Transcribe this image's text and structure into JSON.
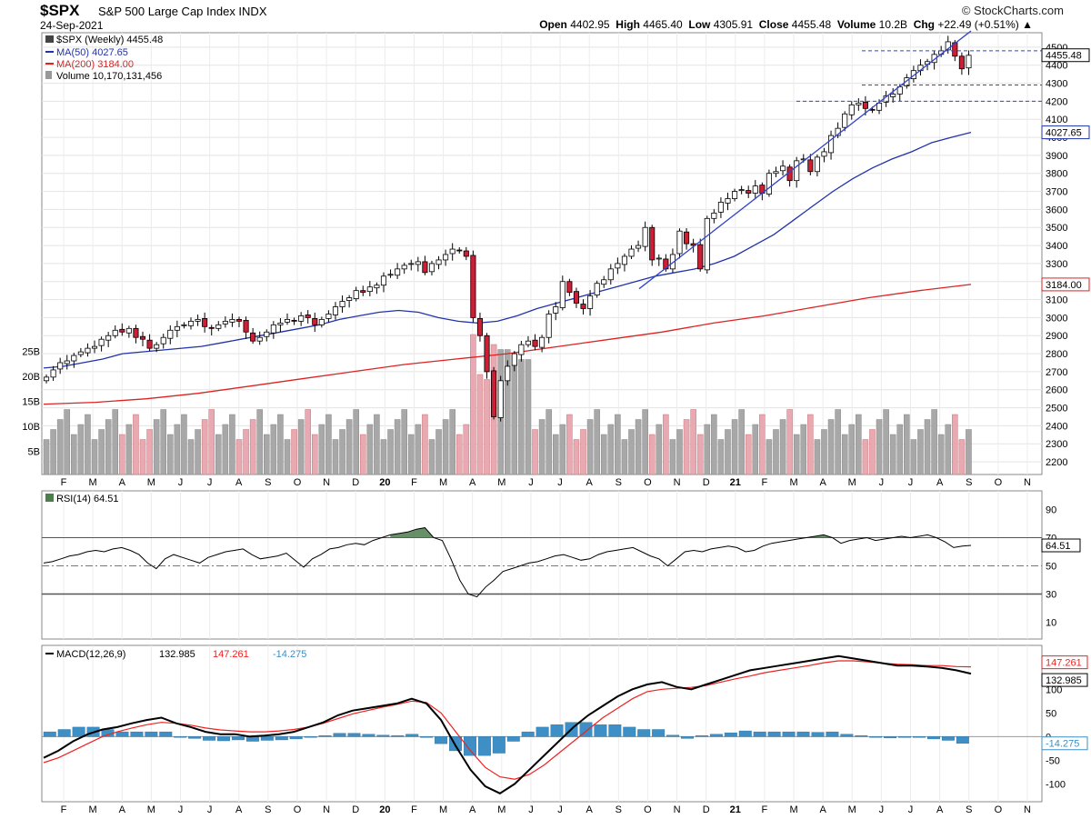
{
  "header": {
    "symbol": "$SPX",
    "name": "S&P 500 Large Cap Index INDX",
    "date": "24-Sep-2021",
    "brand": "© StockCharts.com",
    "open_label": "Open",
    "open": "4402.95",
    "high_label": "High",
    "high": "4465.40",
    "low_label": "Low",
    "low": "4305.91",
    "close_label": "Close",
    "close": "4455.48",
    "volume_label": "Volume",
    "volume": "10.2B",
    "chg_label": "Chg",
    "chg": "+22.49 (+0.51%)"
  },
  "colors": {
    "up": "#ffffff",
    "down": "#cc1e35",
    "ma50": "#2233aa",
    "ma200": "#dd2222",
    "vol_up": "#a8a8a8",
    "vol_down": "#e8a9b2",
    "rsi": "#000000",
    "rsi_fill": "#4e7d4e",
    "macd": "#000000",
    "signal": "#ee2222",
    "hist": "#3d8fc5",
    "trend": "#3344cc"
  },
  "legend": {
    "price": "$SPX (Weekly) 4455.48",
    "ma50": "MA(50) 4027.65",
    "ma200": "MA(200) 3184.00",
    "volume": "Volume 10,170,131,456",
    "rsi": "RSI(14) 64.51",
    "macd_label": "MACD(12,26,9)",
    "macd_val": "132.985",
    "signal_val": "147.261",
    "hist_val": "-14.275"
  },
  "chart_data": [
    {
      "type": "candlestick",
      "title": "$SPX (Weekly) 4455.48",
      "y_ticks": [
        2200,
        2300,
        2400,
        2500,
        2600,
        2700,
        2800,
        2900,
        3000,
        3100,
        3200,
        3300,
        3400,
        3500,
        3600,
        3700,
        3800,
        3900,
        4000,
        4100,
        4200,
        4300,
        4400,
        4500
      ],
      "ylim": [
        2150,
        4560
      ],
      "x_labels": [
        "F",
        "M",
        "A",
        "M",
        "J",
        "J",
        "A",
        "S",
        "O",
        "N",
        "D",
        "20",
        "F",
        "M",
        "A",
        "M",
        "J",
        "J",
        "A",
        "S",
        "O",
        "N",
        "D",
        "21",
        "F",
        "M",
        "A",
        "M",
        "J",
        "J",
        "A",
        "S",
        "O",
        "N"
      ],
      "price_labels": [
        "4455.48",
        "4027.65",
        "3184.00"
      ],
      "weekly_close": [
        2670,
        2710,
        2750,
        2760,
        2790,
        2810,
        2830,
        2840,
        2880,
        2900,
        2930,
        2920,
        2940,
        2890,
        2880,
        2830,
        2850,
        2890,
        2930,
        2950,
        2960,
        2980,
        2990,
        2950,
        2940,
        2960,
        2980,
        2990,
        2980,
        2920,
        2870,
        2890,
        2920,
        2960,
        2970,
        2990,
        2980,
        3010,
        3000,
        2960,
        2990,
        3020,
        3060,
        3090,
        3110,
        3150,
        3140,
        3170,
        3180,
        3230,
        3240,
        3270,
        3290,
        3300,
        3310,
        3250,
        3300,
        3320,
        3350,
        3380,
        3370,
        3340,
        3000,
        2900,
        2700,
        2450,
        2650,
        2730,
        2800,
        2850,
        2870,
        2840,
        2890,
        3020,
        3060,
        3200,
        3140,
        3080,
        3050,
        3120,
        3190,
        3210,
        3270,
        3300,
        3340,
        3380,
        3400,
        3500,
        3320,
        3330,
        3270,
        3350,
        3480,
        3410,
        3400,
        3270,
        3550,
        3580,
        3640,
        3660,
        3700,
        3710,
        3690,
        3730,
        3690,
        3800,
        3810,
        3840,
        3760,
        3870,
        3880,
        3810,
        3890,
        3920,
        4010,
        4050,
        4130,
        4180,
        4190,
        4160,
        4150,
        4190,
        4230,
        4240,
        4280,
        4330,
        4370,
        4400,
        4420,
        4460,
        4480,
        4530,
        4450,
        4380,
        4455
      ],
      "ma50": [
        2720,
        2730,
        2750,
        2770,
        2800,
        2810,
        2820,
        2830,
        2840,
        2860,
        2880,
        2900,
        2920,
        2940,
        2960,
        2990,
        3010,
        3030,
        3040,
        3030,
        3000,
        2980,
        2970,
        2980,
        3010,
        3050,
        3080,
        3110,
        3140,
        3170,
        3200,
        3230,
        3250,
        3270,
        3300,
        3340,
        3400,
        3460,
        3540,
        3620,
        3700,
        3770,
        3830,
        3880,
        3920,
        3970,
        4000,
        4027.65
      ],
      "ma200": [
        2520,
        2530,
        2550,
        2580,
        2620,
        2660,
        2700,
        2740,
        2770,
        2800,
        2840,
        2880,
        2920,
        2970,
        3010,
        3060,
        3110,
        3150,
        3184
      ],
      "volume_ylabels": [
        "5B",
        "10B",
        "15B",
        "20B",
        "25B"
      ],
      "volume_last": "10170131456"
    },
    {
      "type": "line",
      "title": "RSI(14) 64.51",
      "y_ticks": [
        10,
        30,
        50,
        70,
        90
      ],
      "ylim": [
        0,
        100
      ],
      "levels": [
        30,
        50,
        70
      ],
      "last": 64.51,
      "values": [
        52,
        53,
        55,
        57,
        58,
        60,
        61,
        60,
        62,
        63,
        61,
        58,
        52,
        48,
        55,
        58,
        56,
        54,
        52,
        56,
        58,
        60,
        61,
        62,
        58,
        55,
        56,
        57,
        59,
        54,
        49,
        55,
        58,
        62,
        63,
        65,
        66,
        65,
        68,
        70,
        72,
        73,
        74,
        76,
        77,
        70,
        68,
        55,
        40,
        30,
        28,
        35,
        40,
        46,
        48,
        50,
        52,
        53,
        55,
        57,
        58,
        56,
        54,
        55,
        58,
        60,
        61,
        62,
        63,
        60,
        57,
        55,
        50,
        55,
        60,
        61,
        60,
        62,
        63,
        64,
        63,
        60,
        61,
        64,
        66,
        67,
        68,
        69,
        70,
        71,
        72,
        70,
        66,
        68,
        69,
        70,
        68,
        69,
        70,
        71,
        70,
        71,
        72,
        70,
        67,
        63,
        64,
        64.51
      ],
      "overbought_ranges": [
        [
          40,
          46
        ],
        [
          86,
          93
        ]
      ]
    },
    {
      "type": "line",
      "title": "MACD(12,26,9)",
      "y_ticks": [
        -100,
        -50,
        0,
        50,
        100
      ],
      "ylim": [
        -130,
        185
      ],
      "values_macd": [
        -45,
        -30,
        -10,
        5,
        15,
        20,
        28,
        35,
        40,
        28,
        20,
        10,
        5,
        5,
        0,
        2,
        5,
        10,
        20,
        30,
        45,
        55,
        60,
        65,
        70,
        80,
        70,
        35,
        -20,
        -70,
        -105,
        -120,
        -100,
        -70,
        -40,
        -10,
        20,
        45,
        65,
        85,
        100,
        110,
        115,
        105,
        100,
        110,
        120,
        130,
        140,
        145,
        150,
        155,
        160,
        165,
        170,
        165,
        160,
        155,
        150,
        150,
        148,
        145,
        140,
        132.985
      ],
      "values_signal": [
        -55,
        -45,
        -30,
        -15,
        0,
        10,
        18,
        25,
        30,
        28,
        24,
        18,
        14,
        12,
        10,
        10,
        12,
        15,
        20,
        28,
        38,
        48,
        55,
        62,
        68,
        75,
        72,
        50,
        10,
        -30,
        -65,
        -85,
        -90,
        -80,
        -60,
        -35,
        -10,
        15,
        40,
        60,
        80,
        95,
        100,
        102,
        104,
        108,
        115,
        122,
        128,
        135,
        140,
        145,
        150,
        156,
        160,
        160,
        158,
        155,
        153,
        152,
        150,
        150,
        148,
        147.261
      ],
      "values_hist": [
        10,
        15,
        20,
        20,
        15,
        10,
        10,
        10,
        10,
        0,
        -4,
        -8,
        -9,
        -7,
        -10,
        -8,
        -7,
        -5,
        0,
        2,
        7,
        7,
        5,
        3,
        2,
        5,
        -2,
        -15,
        -30,
        -40,
        -40,
        -35,
        -10,
        10,
        20,
        25,
        30,
        30,
        25,
        25,
        20,
        15,
        15,
        3,
        -4,
        2,
        5,
        8,
        12,
        10,
        10,
        10,
        10,
        9,
        10,
        5,
        2,
        0,
        -3,
        -2,
        -2,
        -5,
        -8,
        -14.275
      ],
      "last_macd": 132.985,
      "last_signal": 147.261,
      "last_hist": -14.275
    }
  ]
}
